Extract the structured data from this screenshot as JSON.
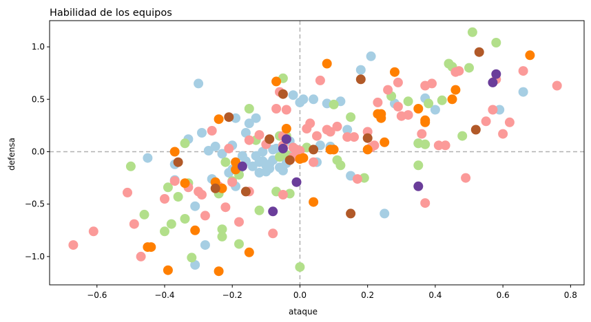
{
  "chart_data": {
    "type": "scatter",
    "title": "Habilidad de los equipos",
    "xlabel": "ataque",
    "ylabel": "defensa",
    "xlim": [
      -0.74,
      0.84
    ],
    "ylim": [
      -1.27,
      1.25
    ],
    "xticks": [
      -0.6,
      -0.4,
      -0.2,
      0.0,
      0.2,
      0.4,
      0.6,
      0.8
    ],
    "yticks": [
      -1.0,
      -0.5,
      0.0,
      0.5,
      1.0
    ],
    "xtick_labels": [
      "−0.6",
      "−0.4",
      "−0.2",
      "0.0",
      "0.2",
      "0.4",
      "0.6",
      "0.8"
    ],
    "ytick_labels": [
      "−1.0",
      "−0.5",
      "0.0",
      "0.5",
      "1.0"
    ],
    "reference_lines": {
      "x": 0,
      "y": 0,
      "style": "dashed",
      "color": "#b0b0b0"
    },
    "grid": false,
    "legend": "none",
    "series": [
      {
        "color": "#a6cee3",
        "x": [
          -0.3,
          -0.29,
          -0.27,
          -0.25,
          -0.21,
          -0.2,
          -0.19,
          -0.18,
          -0.16,
          -0.15,
          -0.13,
          -0.12,
          -0.11,
          -0.1,
          -0.09,
          -0.08,
          -0.07,
          -0.06,
          -0.05,
          -0.04,
          -0.03,
          -0.02,
          0.01,
          0.04,
          0.06,
          0.08,
          0.12,
          0.14,
          0.15,
          0.18,
          0.21,
          0.25,
          0.28,
          0.35,
          0.37,
          0.4,
          0.59,
          0.66,
          -0.45,
          -0.37,
          -0.33,
          -0.28,
          -0.26,
          -0.23,
          -0.2,
          -0.16,
          -0.14,
          -0.12,
          -0.1,
          -0.08,
          -0.06,
          -0.04,
          -0.02,
          0.0,
          0.05,
          0.09,
          -0.03,
          -0.13,
          -0.11,
          -0.09,
          -0.05,
          -0.37,
          -0.31,
          -0.31,
          -0.19,
          -0.17
        ],
        "y": [
          0.65,
          0.18,
          0.01,
          0.05,
          -0.2,
          0.06,
          -0.33,
          -0.17,
          0.18,
          0.27,
          0.32,
          -0.1,
          0.0,
          -0.13,
          -0.16,
          -0.08,
          0.03,
          -0.15,
          0.0,
          0.13,
          0.1,
          0.54,
          0.5,
          0.5,
          0.06,
          0.46,
          0.48,
          0.21,
          -0.23,
          0.78,
          0.91,
          -0.59,
          0.46,
          0.08,
          0.51,
          0.4,
          0.4,
          0.57,
          -0.06,
          -0.12,
          0.12,
          -0.89,
          -0.26,
          -0.02,
          -0.17,
          -0.09,
          -0.14,
          -0.2,
          -0.19,
          0.02,
          -0.05,
          -0.11,
          0.04,
          0.47,
          -0.1,
          0.05,
          -0.04,
          -0.04,
          -0.09,
          -0.12,
          -0.18,
          -0.27,
          -0.52,
          -1.08,
          0.32,
          -0.04
        ]
      },
      {
        "color": "#b2df8a",
        "x": [
          -0.5,
          -0.46,
          -0.4,
          -0.39,
          -0.38,
          -0.36,
          -0.34,
          -0.34,
          -0.33,
          -0.32,
          -0.23,
          -0.23,
          -0.18,
          -0.18,
          -0.15,
          -0.13,
          -0.12,
          -0.07,
          -0.06,
          -0.05,
          -0.04,
          -0.04,
          0.0,
          0.02,
          0.1,
          0.11,
          0.12,
          0.19,
          0.27,
          0.32,
          0.35,
          0.35,
          0.37,
          0.38,
          0.42,
          0.44,
          0.45,
          0.48,
          0.5,
          0.51,
          0.58,
          -0.24,
          -0.2,
          -0.06,
          -0.03,
          -0.22,
          -0.01,
          0.15
        ],
        "y": [
          -0.14,
          -0.6,
          -0.76,
          -0.34,
          -0.69,
          -0.43,
          0.08,
          -0.64,
          -0.3,
          -1.01,
          -0.74,
          -0.81,
          -0.88,
          -0.22,
          0.41,
          0.11,
          -0.56,
          -0.38,
          -0.05,
          0.7,
          0.15,
          -0.03,
          -1.1,
          0.04,
          0.45,
          -0.08,
          -0.13,
          -0.25,
          0.53,
          0.48,
          0.08,
          -0.13,
          0.07,
          0.46,
          0.49,
          0.84,
          0.81,
          0.15,
          0.8,
          1.14,
          1.04,
          -0.4,
          -0.28,
          0.15,
          -0.4,
          -0.1,
          -0.03,
          0.33
        ]
      },
      {
        "color": "#fb9a99",
        "x": [
          -0.67,
          -0.61,
          -0.51,
          -0.49,
          -0.47,
          -0.4,
          -0.37,
          -0.33,
          -0.3,
          -0.29,
          -0.28,
          -0.26,
          -0.24,
          -0.22,
          -0.21,
          -0.2,
          -0.18,
          -0.15,
          -0.12,
          -0.08,
          -0.07,
          -0.06,
          -0.05,
          -0.05,
          -0.04,
          -0.02,
          -0.01,
          0.0,
          0.03,
          0.04,
          0.05,
          0.06,
          0.08,
          0.09,
          0.11,
          0.16,
          0.17,
          0.2,
          0.22,
          0.23,
          0.26,
          0.29,
          0.29,
          0.3,
          0.32,
          0.37,
          0.39,
          0.41,
          0.43,
          0.46,
          0.47,
          0.49,
          0.55,
          0.58,
          0.6,
          0.62,
          0.66,
          0.76,
          0.57,
          0.36,
          0.37,
          0.02,
          0.14,
          -0.15,
          -0.1,
          -0.05,
          -0.02,
          0.21
        ],
        "y": [
          -0.89,
          -0.76,
          -0.39,
          -0.69,
          -1.0,
          -0.45,
          -0.28,
          -0.34,
          -0.38,
          -0.41,
          -0.61,
          0.2,
          -0.33,
          -0.53,
          0.03,
          -0.29,
          -0.67,
          -0.38,
          0.16,
          -0.78,
          0.41,
          0.57,
          0.15,
          -0.41,
          0.4,
          0.04,
          0.02,
          0.01,
          0.27,
          -0.1,
          0.15,
          0.68,
          0.21,
          0.19,
          0.24,
          0.14,
          -0.26,
          0.19,
          0.06,
          0.47,
          0.59,
          0.66,
          0.43,
          0.34,
          0.35,
          0.63,
          0.65,
          0.06,
          0.06,
          0.76,
          0.77,
          -0.25,
          0.29,
          0.69,
          0.17,
          0.28,
          0.77,
          0.63,
          0.4,
          0.17,
          -0.49,
          0.22,
          0.14,
          0.11,
          0.07,
          0.06,
          -0.05,
          0.04
        ]
      },
      {
        "color": "#ff7f00",
        "x": [
          -0.45,
          -0.44,
          -0.39,
          -0.37,
          -0.34,
          -0.31,
          -0.25,
          -0.24,
          -0.23,
          -0.19,
          -0.19,
          -0.15,
          -0.07,
          -0.04,
          0.0,
          0.01,
          0.04,
          0.08,
          0.09,
          0.1,
          0.2,
          0.23,
          0.24,
          0.24,
          0.25,
          0.28,
          0.35,
          0.37,
          0.37,
          0.45,
          0.46,
          0.68,
          -0.24
        ],
        "y": [
          -0.91,
          -0.91,
          -1.13,
          0.0,
          -0.3,
          -0.75,
          -0.29,
          0.31,
          -0.35,
          -0.1,
          -0.17,
          -0.96,
          0.67,
          0.22,
          -0.07,
          -0.06,
          -0.48,
          0.84,
          0.02,
          0.02,
          0.02,
          0.36,
          0.36,
          0.32,
          0.09,
          0.76,
          0.41,
          0.3,
          0.28,
          0.5,
          0.59,
          0.92,
          -1.14
        ]
      },
      {
        "color": "#b15928",
        "x": [
          -0.36,
          -0.25,
          -0.21,
          -0.16,
          -0.09,
          -0.05,
          -0.04,
          -0.03,
          0.04,
          0.18,
          0.2,
          0.15,
          0.53,
          0.52
        ],
        "y": [
          -0.1,
          -0.35,
          0.33,
          -0.38,
          0.12,
          0.55,
          0.12,
          -0.08,
          0.02,
          0.69,
          0.13,
          -0.59,
          0.95,
          0.21
        ]
      },
      {
        "color": "#6a3d9a",
        "x": [
          -0.17,
          -0.08,
          -0.05,
          -0.04,
          -0.01,
          0.35,
          0.57,
          0.58
        ],
        "y": [
          -0.14,
          -0.57,
          0.03,
          0.12,
          -0.29,
          -0.33,
          0.66,
          0.74
        ]
      }
    ]
  }
}
